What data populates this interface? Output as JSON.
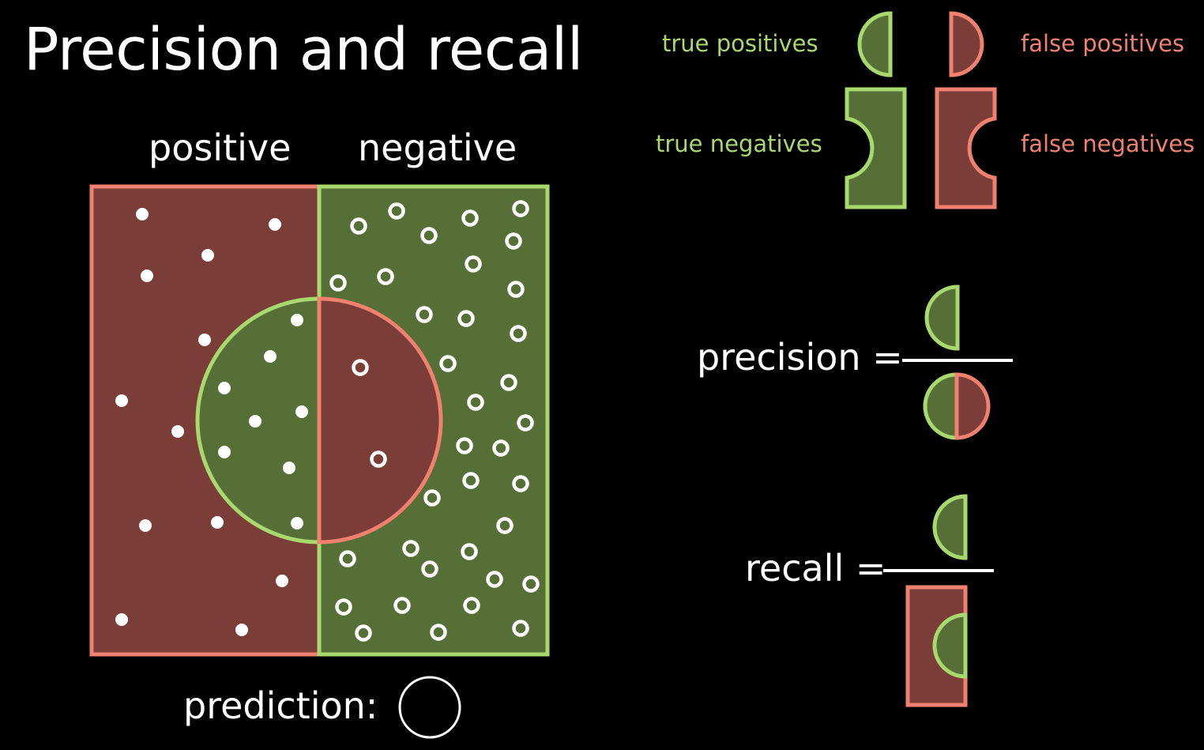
{
  "title": "Precision and recall",
  "columns": {
    "positive": "positive",
    "negative": "negative"
  },
  "legend": {
    "true_positives": "true positives",
    "false_positives": "false positives",
    "true_negatives": "true negatives",
    "false_negatives": "false negatives"
  },
  "prediction_label": "prediction:",
  "precision_label": "precision =",
  "recall_label": "recall =",
  "colors": {
    "green_fill": "#566f36",
    "green_stroke": "#a8d86e",
    "red_fill": "#7a3d37",
    "red_stroke": "#f08070",
    "background": "#000000"
  }
}
